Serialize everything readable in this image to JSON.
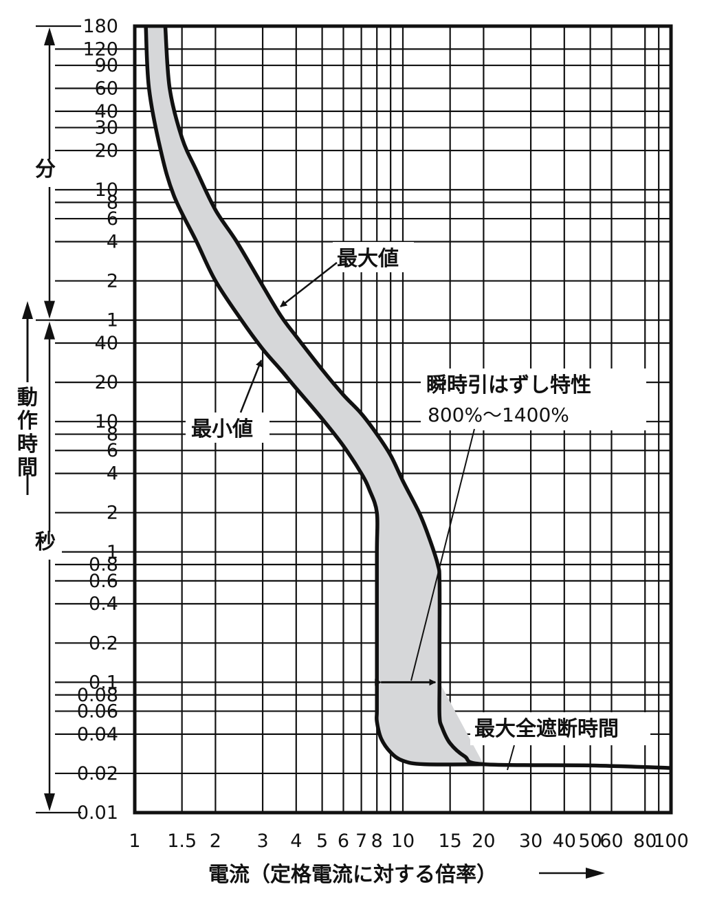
{
  "chart_data": {
    "type": "line",
    "title": "",
    "xlabel": "電流（定格電流に対する倍率）",
    "ylabel": "動作時間",
    "x_scale": "log",
    "xlim": [
      1,
      100
    ],
    "x_ticks": [
      1,
      1.5,
      2,
      3,
      4,
      5,
      6,
      7,
      8,
      10,
      15,
      20,
      30,
      40,
      50,
      60,
      80,
      100
    ],
    "x_tick_labels": [
      "1",
      "1.5",
      "2",
      "3",
      "4",
      "5",
      "6",
      "7",
      "8",
      "10",
      "15",
      "20",
      "30",
      "40",
      "50",
      "60",
      "80",
      "100"
    ],
    "x_extra_gridlines": [
      9,
      90
    ],
    "y_scale": "log",
    "ylim_seconds": [
      0.01,
      10800
    ],
    "y_unit_labels": {
      "minutes": "分",
      "seconds": "秒"
    },
    "y_ticks_minutes": [
      {
        "label": "180",
        "value": 180
      },
      {
        "label": "120",
        "value": 120
      },
      {
        "label": "90",
        "value": 90
      },
      {
        "label": "60",
        "value": 60
      },
      {
        "label": "40",
        "value": 40
      },
      {
        "label": "30",
        "value": 30
      },
      {
        "label": "20",
        "value": 20
      },
      {
        "label": "10",
        "value": 10
      },
      {
        "label": "8",
        "value": 8
      },
      {
        "label": "6",
        "value": 6
      },
      {
        "label": "4",
        "value": 4
      },
      {
        "label": "2",
        "value": 2
      },
      {
        "label": "1",
        "value": 1
      }
    ],
    "y_ticks_seconds": [
      {
        "label": "40",
        "value": 40
      },
      {
        "label": "20",
        "value": 20
      },
      {
        "label": "10",
        "value": 10
      },
      {
        "label": "8",
        "value": 8
      },
      {
        "label": "6",
        "value": 6
      },
      {
        "label": "4",
        "value": 4
      },
      {
        "label": "2",
        "value": 2
      },
      {
        "label": "1",
        "value": 1
      },
      {
        "label": "0.8",
        "value": 0.8
      },
      {
        "label": "0.6",
        "value": 0.6
      },
      {
        "label": "0.4",
        "value": 0.4
      },
      {
        "label": "0.2",
        "value": 0.2
      },
      {
        "label": "0.1",
        "value": 0.1
      },
      {
        "label": "0.08",
        "value": 0.08
      },
      {
        "label": "0.06",
        "value": 0.06
      },
      {
        "label": "0.04",
        "value": 0.04
      },
      {
        "label": "0.02",
        "value": 0.02
      },
      {
        "label": "0.01",
        "value": 0.01
      }
    ],
    "series": [
      {
        "name": "最大値",
        "points": [
          [
            1.3,
            10800
          ],
          [
            1.35,
            3600
          ],
          [
            1.5,
            1500
          ],
          [
            1.7,
            840
          ],
          [
            2.0,
            420
          ],
          [
            2.4,
            240
          ],
          [
            3.0,
            110
          ],
          [
            3.5,
            65
          ],
          [
            4.0,
            45
          ],
          [
            5.0,
            25
          ],
          [
            6.0,
            16
          ],
          [
            7.0,
            11.5
          ],
          [
            8.0,
            8
          ],
          [
            9.0,
            5.5
          ],
          [
            10.0,
            3.5
          ],
          [
            11.5,
            2.0
          ],
          [
            12.5,
            1.3
          ],
          [
            13.5,
            0.8
          ],
          [
            13.7,
            0.6
          ],
          [
            13.7,
            0.2
          ],
          [
            13.7,
            0.1
          ],
          [
            13.7,
            0.055
          ],
          [
            14.0,
            0.045
          ],
          [
            15.0,
            0.034
          ],
          [
            17.0,
            0.027
          ],
          [
            20.0,
            0.0235
          ],
          [
            50.0,
            0.023
          ],
          [
            100.0,
            0.022
          ]
        ]
      },
      {
        "name": "最小値",
        "points": [
          [
            1.1,
            10800
          ],
          [
            1.13,
            3600
          ],
          [
            1.25,
            1200
          ],
          [
            1.4,
            540
          ],
          [
            1.7,
            240
          ],
          [
            2.0,
            120
          ],
          [
            2.5,
            60
          ],
          [
            3.0,
            36
          ],
          [
            3.5,
            25
          ],
          [
            4.0,
            18
          ],
          [
            5.0,
            10.5
          ],
          [
            6.0,
            6.5
          ],
          [
            7.0,
            4.0
          ],
          [
            7.5,
            3.0
          ],
          [
            8.0,
            2.0
          ],
          [
            8.0,
            1.0
          ],
          [
            8.0,
            0.2
          ],
          [
            8.0,
            0.1
          ],
          [
            8.0,
            0.06
          ],
          [
            8.0,
            0.05
          ],
          [
            8.3,
            0.037
          ],
          [
            9.0,
            0.029
          ],
          [
            10.0,
            0.025
          ],
          [
            12.0,
            0.0235
          ],
          [
            20.0,
            0.0235
          ]
        ]
      }
    ],
    "annotations": {
      "max_value": "最大値",
      "min_value": "最小値",
      "instantaneous_title": "瞬時引はずし特性",
      "instantaneous_range": "800%〜1400%",
      "max_total_interrupt_time": "最大全遮断時間",
      "instantaneous_arrow_x": [
        8,
        13.7
      ],
      "instantaneous_arrow_time_s": 0.1
    }
  }
}
